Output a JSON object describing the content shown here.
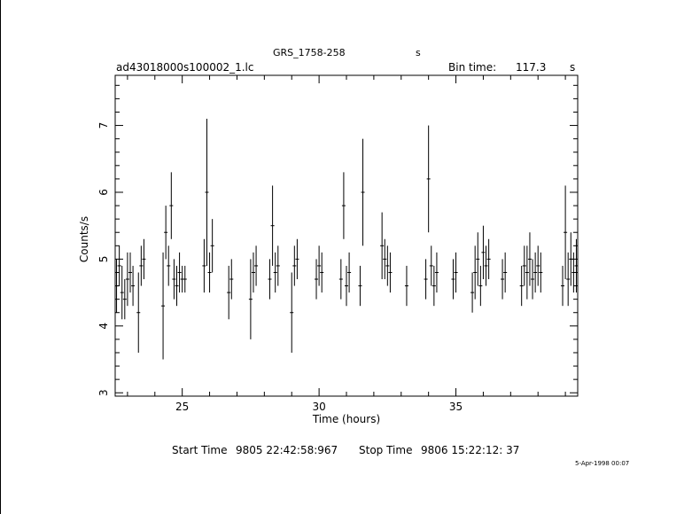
{
  "header": {
    "title": "GRS_1758-258",
    "title_unit": "s",
    "filename": "ad43018000s100002_1.lc",
    "bin_time_label": "Bin time:",
    "bin_time_value": "117.3",
    "bin_time_unit": "s"
  },
  "footer": {
    "start_label": "Start Time",
    "start_value": "9805 22:42:58:967",
    "stop_label": "Stop Time",
    "stop_value": "9806 15:22:12: 37",
    "date_stamp": "5-Apr-1998 00:07"
  },
  "chart_data": {
    "type": "line",
    "xlabel": "Time (hours)",
    "ylabel": "Counts/s",
    "xlim": [
      22.55,
      39.45
    ],
    "ylim": [
      2.95,
      7.75
    ],
    "x_ticks": [
      25,
      30,
      35
    ],
    "y_ticks": [
      3,
      4,
      5,
      6,
      7
    ],
    "series": [
      {
        "values_note": "",
        "x": [
          22.6,
          22.7,
          22.8,
          22.9,
          23.0,
          23.1,
          23.2,
          23.4,
          23.5,
          23.6,
          24.3,
          24.4,
          24.5,
          24.6,
          24.7,
          24.8,
          24.9,
          25.0,
          25.1,
          25.8,
          25.9,
          26.0,
          26.1,
          26.7,
          26.8,
          27.5,
          27.6,
          27.7,
          28.2,
          28.3,
          28.4,
          28.5,
          29.0,
          29.1,
          29.2,
          29.9,
          30.0,
          30.1,
          30.8,
          30.9,
          31.0,
          31.1,
          31.5,
          31.6,
          32.3,
          32.4,
          32.5,
          32.6,
          33.2,
          33.9,
          34.0,
          34.1,
          34.2,
          34.3,
          34.9,
          35.0,
          35.6,
          35.7,
          35.8,
          35.9,
          36.0,
          36.1,
          36.2,
          36.7,
          36.8,
          37.4,
          37.5,
          37.6,
          37.7,
          37.8,
          37.9,
          38.0,
          38.1,
          38.9,
          39.0,
          39.1,
          39.2,
          39.3,
          39.4
        ],
        "y": [
          4.6,
          4.9,
          4.5,
          4.4,
          4.7,
          4.8,
          4.6,
          4.2,
          4.9,
          5.0,
          4.3,
          5.4,
          4.9,
          5.8,
          4.7,
          4.6,
          4.8,
          4.7,
          4.7,
          4.9,
          6.0,
          4.8,
          5.2,
          4.5,
          4.7,
          4.4,
          4.8,
          4.9,
          4.7,
          5.5,
          4.8,
          4.9,
          4.2,
          4.9,
          5.0,
          4.7,
          4.9,
          4.8,
          4.7,
          5.8,
          4.6,
          4.8,
          4.6,
          6.0,
          5.2,
          5.0,
          4.9,
          4.8,
          4.6,
          4.7,
          6.2,
          4.9,
          4.6,
          4.8,
          4.7,
          4.8,
          4.5,
          4.8,
          5.0,
          4.6,
          5.1,
          4.9,
          5.0,
          4.7,
          4.8,
          4.6,
          4.9,
          4.8,
          5.0,
          4.7,
          4.8,
          4.9,
          4.8,
          4.6,
          5.4,
          4.7,
          5.0,
          4.8,
          4.9
        ],
        "err": [
          0.4,
          0.3,
          0.4,
          0.3,
          0.4,
          0.3,
          0.3,
          0.6,
          0.3,
          0.3,
          0.8,
          0.4,
          0.3,
          0.5,
          0.3,
          0.3,
          0.3,
          0.2,
          0.2,
          0.4,
          1.1,
          0.3,
          0.4,
          0.4,
          0.3,
          0.6,
          0.3,
          0.3,
          0.3,
          0.6,
          0.3,
          0.3,
          0.6,
          0.3,
          0.3,
          0.3,
          0.3,
          0.3,
          0.3,
          0.5,
          0.3,
          0.3,
          0.3,
          0.8,
          0.5,
          0.3,
          0.3,
          0.3,
          0.3,
          0.3,
          0.8,
          0.3,
          0.3,
          0.3,
          0.3,
          0.3,
          0.3,
          0.4,
          0.4,
          0.3,
          0.4,
          0.3,
          0.3,
          0.3,
          0.3,
          0.3,
          0.3,
          0.4,
          0.4,
          0.3,
          0.3,
          0.3,
          0.3,
          0.3,
          0.7,
          0.4,
          0.4,
          0.3,
          0.4
        ]
      }
    ]
  }
}
